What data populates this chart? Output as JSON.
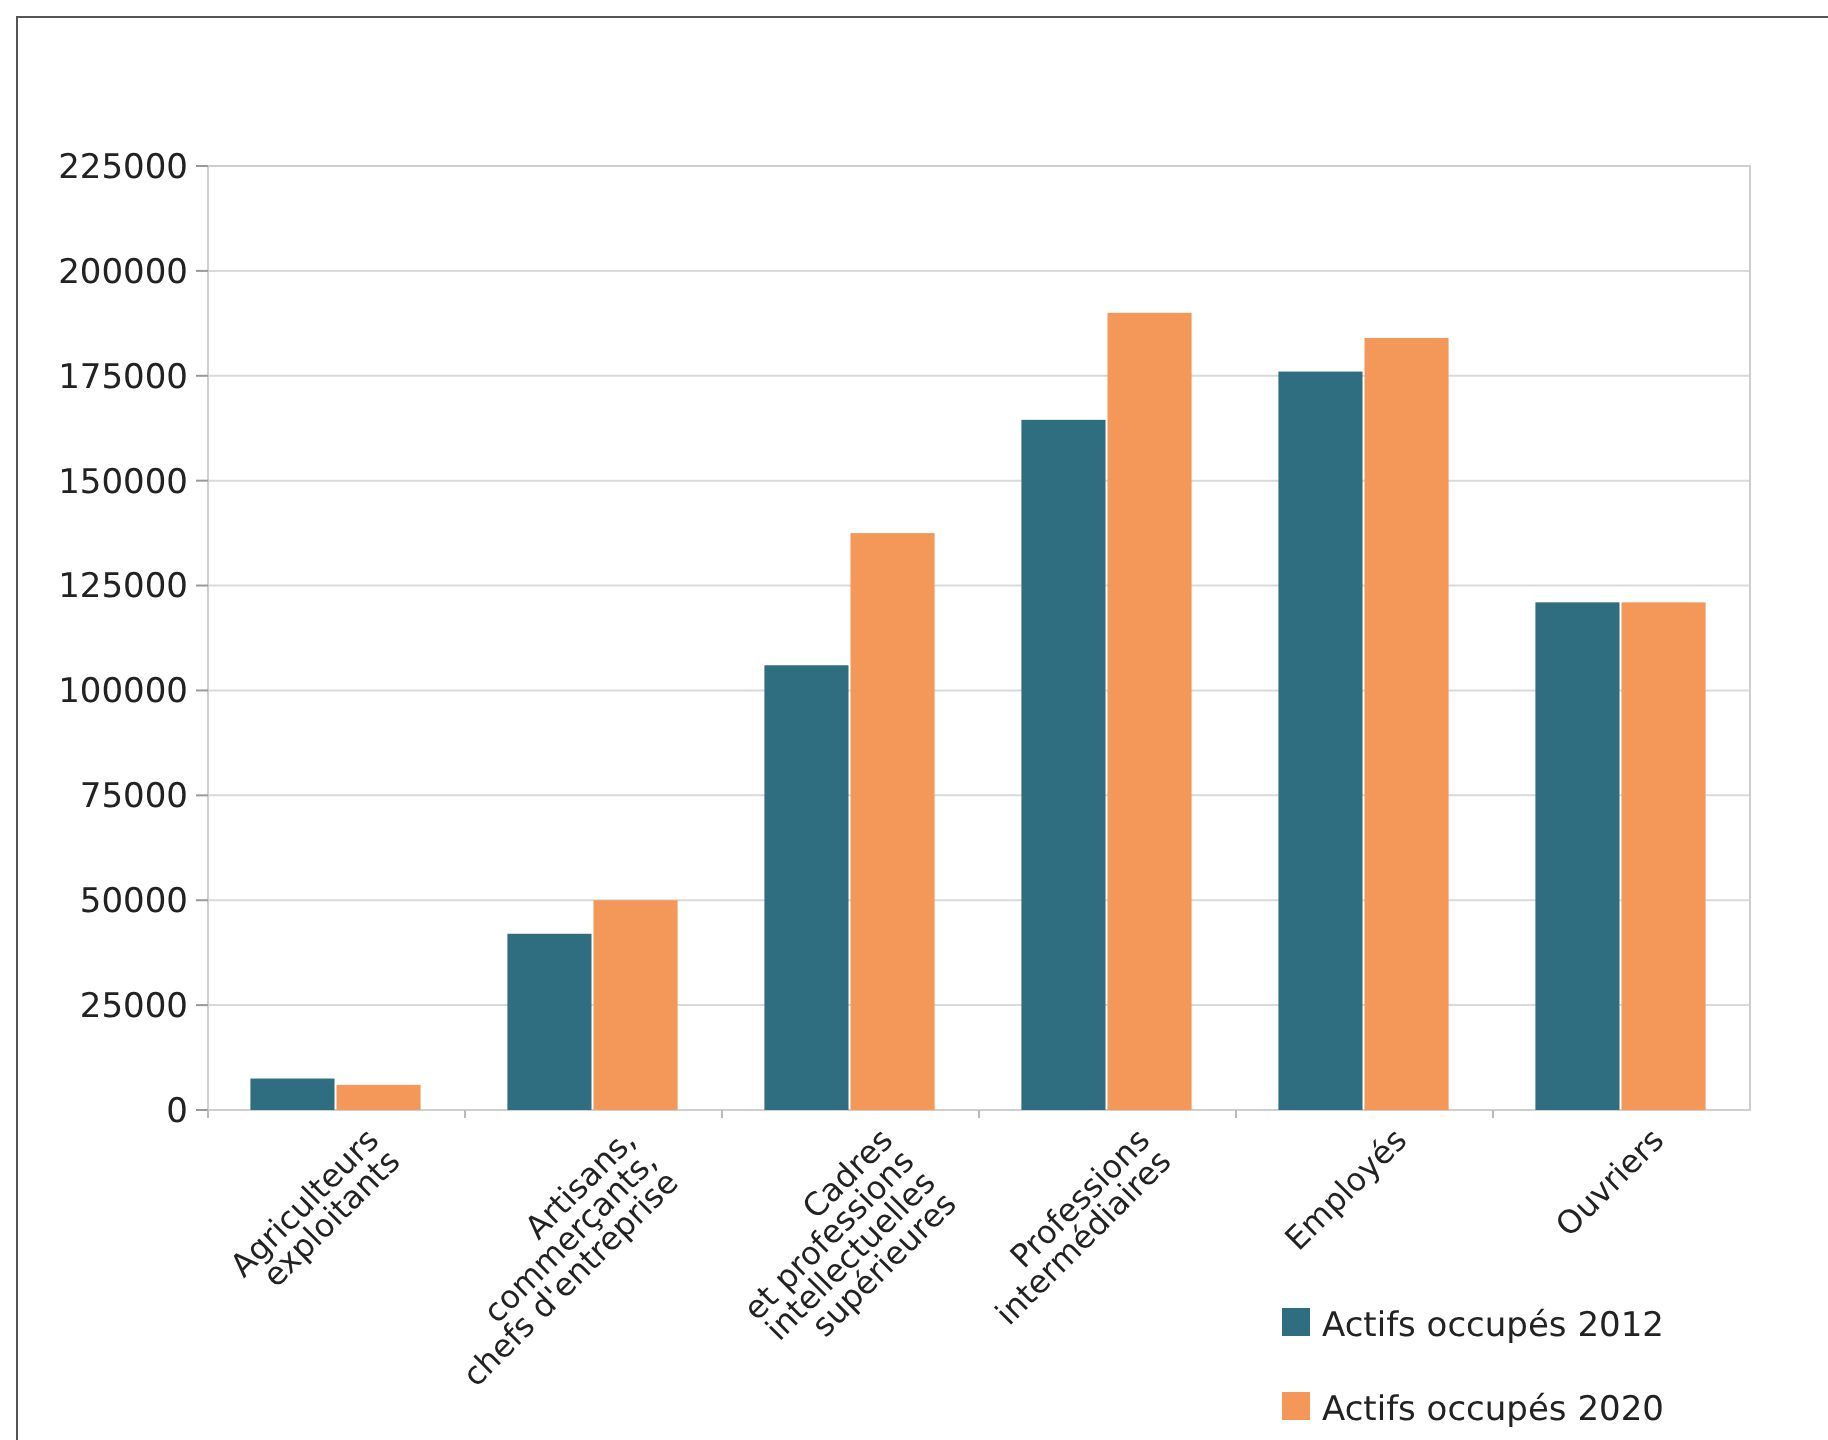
{
  "chart_data": {
    "type": "bar",
    "categories": [
      "Agriculteurs\nexploitants",
      "Artisans,\ncommerçants,\nchefs d'entreprise",
      "Cadres\net professions\nintellectuelles\nsupérieures",
      "Professions\nintermédiaires",
      "Employés",
      "Ouvriers"
    ],
    "series": [
      {
        "name": "Actifs occupés 2012",
        "color": "#2e6e80",
        "values": [
          7500,
          42000,
          106000,
          164500,
          176000,
          121000
        ]
      },
      {
        "name": "Actifs occupés 2020",
        "color": "#f4985a",
        "values": [
          6000,
          50000,
          137500,
          190000,
          184000,
          121000
        ]
      }
    ],
    "ylim": [
      0,
      225000
    ],
    "yticks": [
      0,
      25000,
      50000,
      75000,
      100000,
      125000,
      150000,
      175000,
      200000,
      225000
    ],
    "grid": "y",
    "legend": "bottom right"
  }
}
